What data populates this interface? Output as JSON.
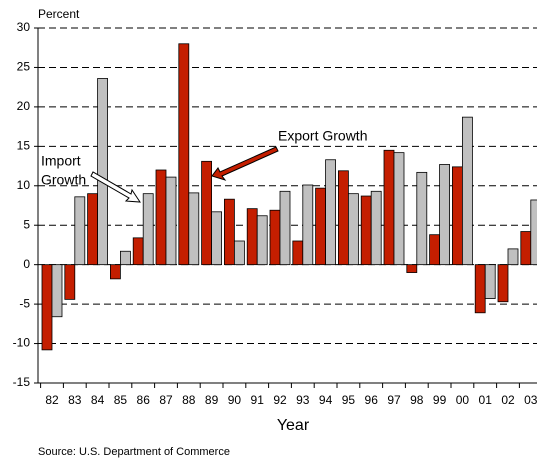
{
  "chart_data": {
    "type": "bar",
    "y_axis_label": "Percent",
    "x_axis_label": "Year",
    "source": "Source:  U.S. Department of Commerce",
    "categories": [
      "82",
      "83",
      "84",
      "85",
      "86",
      "87",
      "88",
      "89",
      "90",
      "91",
      "92",
      "93",
      "94",
      "95",
      "96",
      "97",
      "98",
      "99",
      "00",
      "01",
      "02",
      "03"
    ],
    "series": [
      {
        "color": "#c41e00",
        "values": [
          -10.8,
          -4.4,
          9.0,
          -1.8,
          3.4,
          12.0,
          28.0,
          13.1,
          8.3,
          7.1,
          6.9,
          3.0,
          9.7,
          11.9,
          8.7,
          14.5,
          -1.0,
          3.8,
          12.4,
          -6.1,
          -4.7,
          4.2
        ]
      },
      {
        "color": "#c0c0c0",
        "values": [
          -6.6,
          8.6,
          23.6,
          1.7,
          9.0,
          11.1,
          9.1,
          6.7,
          3.0,
          6.2,
          9.3,
          10.1,
          13.3,
          9.0,
          9.3,
          14.2,
          11.7,
          12.7,
          18.7,
          -4.3,
          2.0,
          8.2
        ]
      }
    ],
    "annotations": [
      {
        "lines": [
          "Export Growth"
        ]
      },
      {
        "lines": [
          "Import",
          "Growth"
        ]
      }
    ],
    "ylim": [
      -15,
      30
    ],
    "yticks": [
      -15,
      -10,
      -5,
      0,
      5,
      10,
      15,
      20,
      25,
      30
    ],
    "grid": true
  }
}
